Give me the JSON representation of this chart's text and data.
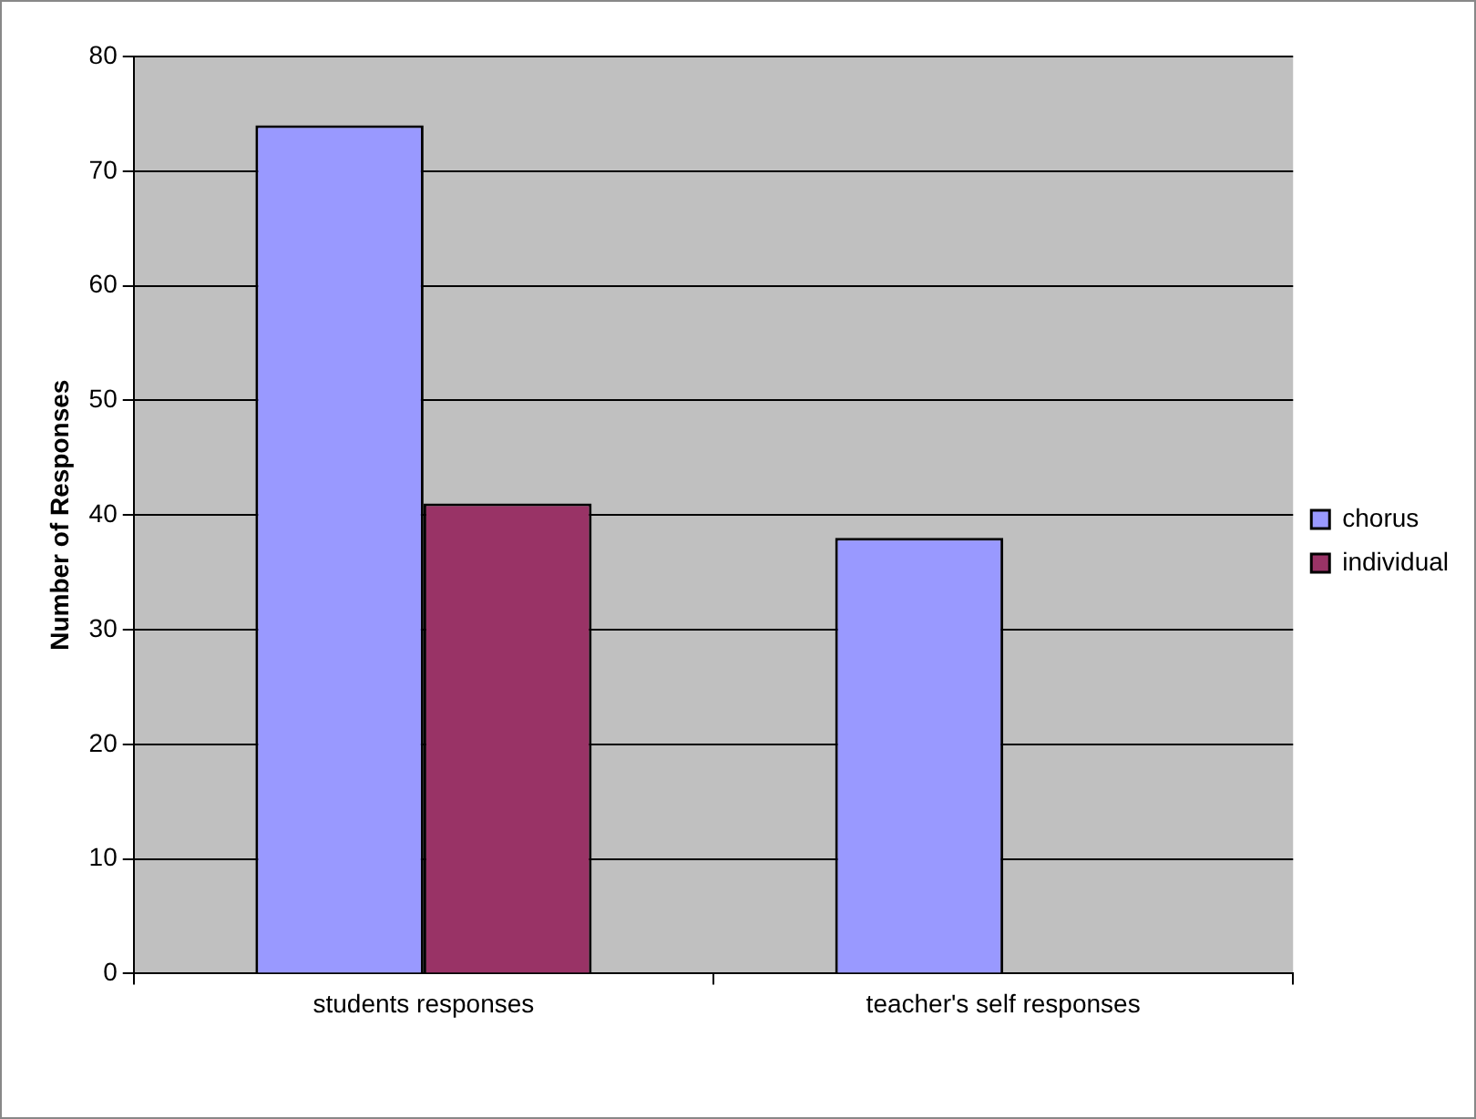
{
  "chart_data": {
    "type": "bar",
    "ylabel": "Number of Responses",
    "categories": [
      "students responses",
      "teacher's self responses"
    ],
    "series": [
      {
        "name": "chorus",
        "color": "#9999ff",
        "values": [
          74,
          38
        ]
      },
      {
        "name": "individual",
        "color": "#993366",
        "values": [
          41,
          null
        ]
      }
    ],
    "ylim": [
      0,
      80
    ],
    "yticks": [
      0,
      10,
      20,
      30,
      40,
      50,
      60,
      70,
      80
    ],
    "grid": "y",
    "legend": "right"
  }
}
